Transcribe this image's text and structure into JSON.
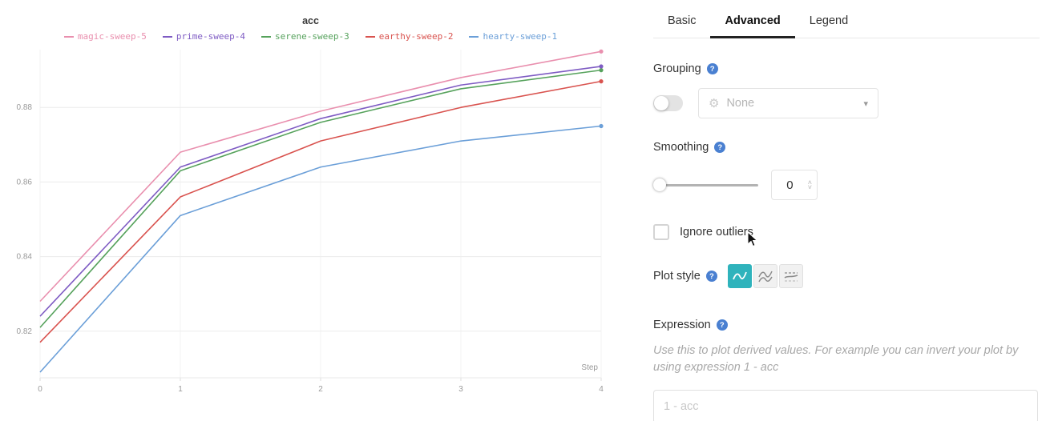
{
  "chart": {
    "title": "acc"
  },
  "chart_data": {
    "type": "line",
    "title": "acc",
    "xlabel": "Step",
    "x": [
      0,
      1,
      2,
      3,
      4
    ],
    "xticks": [
      0,
      1,
      2,
      3,
      4
    ],
    "yticks": [
      0.82,
      0.84,
      0.86,
      0.88
    ],
    "ylim": [
      0.8075,
      0.8955
    ],
    "grid": true,
    "legend_position": "top",
    "series": [
      {
        "name": "magic-sweep-5",
        "color": "#e98fae",
        "values": [
          0.828,
          0.868,
          0.879,
          0.888,
          0.895
        ]
      },
      {
        "name": "prime-sweep-4",
        "color": "#7e5bc3",
        "values": [
          0.824,
          0.864,
          0.877,
          0.886,
          0.891
        ]
      },
      {
        "name": "serene-sweep-3",
        "color": "#56a25c",
        "values": [
          0.821,
          0.863,
          0.876,
          0.885,
          0.89
        ]
      },
      {
        "name": "earthy-sweep-2",
        "color": "#d9534f",
        "values": [
          0.817,
          0.856,
          0.871,
          0.88,
          0.887
        ]
      },
      {
        "name": "hearty-sweep-1",
        "color": "#6b9fd8",
        "values": [
          0.809,
          0.851,
          0.864,
          0.871,
          0.875
        ]
      }
    ]
  },
  "panel": {
    "tabs": [
      {
        "label": "Basic"
      },
      {
        "label": "Advanced",
        "active": true
      },
      {
        "label": "Legend"
      }
    ],
    "grouping": {
      "label": "Grouping",
      "select_value": "None"
    },
    "smoothing": {
      "label": "Smoothing",
      "value": "0"
    },
    "ignore_outliers": {
      "label": "Ignore outliers",
      "checked": false
    },
    "plot_style": {
      "label": "Plot style"
    },
    "expression": {
      "label": "Expression",
      "help_text": "Use this to plot derived values. For example you can invert your plot by using expression 1 - acc",
      "placeholder": "1 - acc"
    }
  },
  "icons": {
    "help": "?",
    "caret": "▾",
    "gear": "⚙",
    "stepper_up": "˄",
    "stepper_down": "˅"
  },
  "colors": {
    "accent_teal": "#2fb3bc",
    "help_blue": "#4a80d1",
    "tab_underline": "#222222"
  }
}
